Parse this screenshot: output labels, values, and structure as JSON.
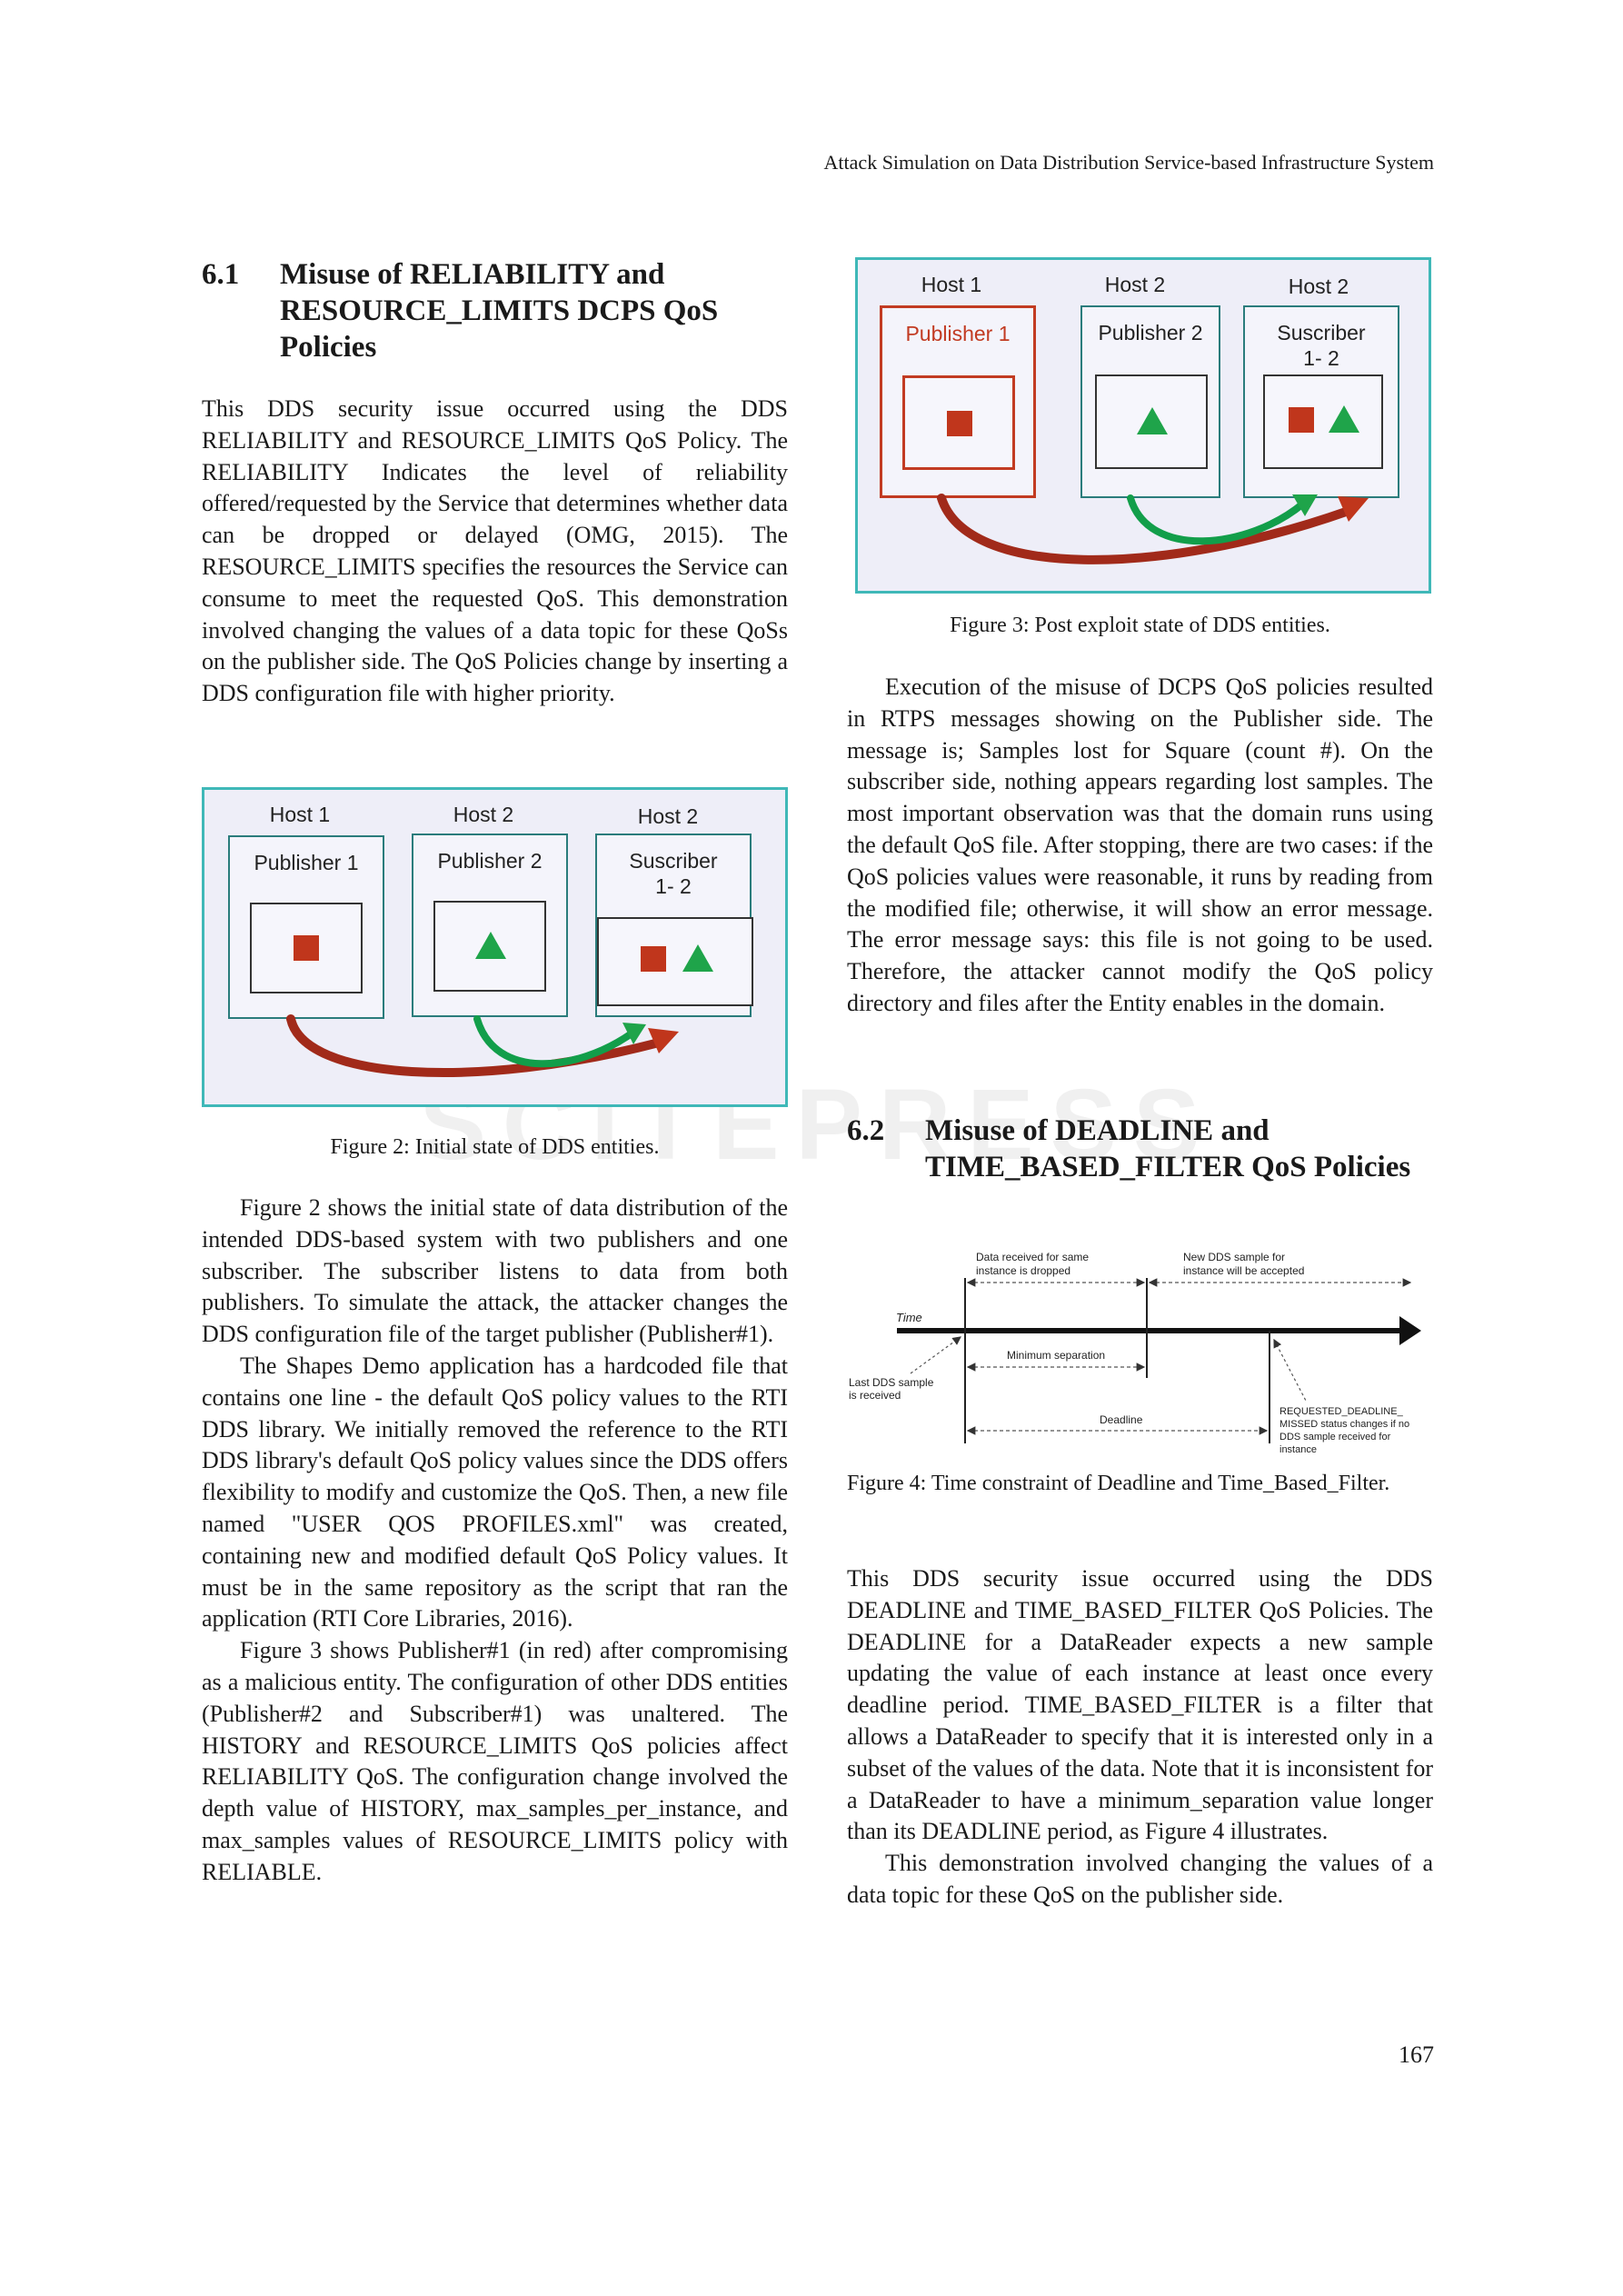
{
  "running_head": "Attack Simulation on Data Distribution Service-based Infrastructure System",
  "page_number": "167",
  "watermark": "SCITEPRESS SCIENCE AND TECHNOLOGY PUBLICATIONS",
  "left": {
    "section_6_1": {
      "number": "6.1",
      "title": "Misuse of RELIABILITY and RESOURCE_LIMITS DCPS QoS Policies"
    },
    "para1": "This DDS security issue occurred using the DDS RELIABILITY and RESOURCE_LIMITS QoS Policy. The RELIABILITY Indicates the level of reliability offered/requested by the Service that determines whether data can be dropped or delayed (OMG, 2015). The RESOURCE_LIMITS specifies the resources the Service can consume to meet the requested QoS. This demonstration involved changing the values of a data topic for these QoSs on the publisher side. The QoS Policies change by inserting a DDS configuration file with higher priority.",
    "fig2": {
      "host1": "Host 1",
      "host2": "Host 2",
      "host3": "Host 2",
      "pub1": "Publisher 1",
      "pub2": "Publisher 2",
      "sub_line1": "Suscriber",
      "sub_line2": "1- 2",
      "caption": "Figure 2: Initial state of DDS entities."
    },
    "para2": "Figure 2 shows the initial state of data distribution of the intended DDS-based system with two publishers and one subscriber. The subscriber listens to data from both publishers. To simulate the attack, the attacker changes the DDS configuration file of the target publisher (Publisher#1).",
    "para3": "The Shapes Demo application has a hardcoded file that contains one line - the default QoS policy values to the RTI DDS library. We initially removed the reference to the RTI DDS library's default QoS policy values since the DDS offers flexibility to modify and customize the QoS. Then, a new file named \"USER QOS PROFILES.xml\" was created, containing new and modified default QoS Policy values. It must be in the same repository as the script that ran the application (RTI Core Libraries, 2016).",
    "para4": "Figure 3 shows Publisher#1 (in red) after compromising as a malicious entity. The configuration of other DDS entities (Publisher#2 and Subscriber#1) was unaltered. The HISTORY and RESOURCE_LIMITS QoS policies affect RELIABILITY QoS. The configuration change involved the depth value of HISTORY, max_samples_per_instance, and max_samples values of RESOURCE_LIMITS policy with RELIABLE."
  },
  "right": {
    "fig3": {
      "host1": "Host 1",
      "host2": "Host 2",
      "host3": "Host 2",
      "pub1": "Publisher 1",
      "pub2": "Publisher 2",
      "sub_line1": "Suscriber",
      "sub_line2": "1- 2",
      "caption": "Figure 3: Post exploit state of DDS entities."
    },
    "para1": "Execution of the misuse of DCPS QoS policies resulted in RTPS messages showing on the Publisher side. The message is; Samples lost for Square (count #). On the subscriber side, nothing appears regarding lost samples. The most important observation was that the domain runs using the default QoS file. After stopping, there are two cases: if the QoS policies values were reasonable, it runs by reading from the modified file; otherwise, it will show an error message. The error message says: this file is not going to be used. Therefore, the attacker cannot modify the QoS policy directory and files after the Entity enables in the domain.",
    "section_6_2": {
      "number": "6.2",
      "title": "Misuse of DEADLINE and TIME_BASED_FILTER QoS Policies"
    },
    "fig4": {
      "time": "Time",
      "dropped_l1": "Data received for same",
      "dropped_l2": "instance is dropped",
      "accepted_l1": "New DDS sample for",
      "accepted_l2": "instance will be accepted",
      "min_sep": "Minimum separation",
      "last_l1": "Last DDS sample",
      "last_l2": "is received",
      "deadline": "Deadline",
      "missed_l1": "REQUESTED_DEADLINE_",
      "missed_l2": "MISSED status changes if no",
      "missed_l3": "DDS sample received for",
      "missed_l4": "instance",
      "caption": "Figure 4: Time constraint of Deadline and Time_Based_Filter."
    },
    "para2": "This DDS security issue occurred using the DDS DEADLINE and TIME_BASED_FILTER QoS Policies. The DEADLINE for a DataReader expects a new sample updating the value of each instance at least once every deadline period. TIME_BASED_FILTER is a filter that allows a DataReader to specify that it is interested only in a subset of the values of the data. Note that it is inconsistent for a DataReader to have a minimum_separation value longer than its DEADLINE period, as Figure 4 illustrates.",
    "para3": "This demonstration involved changing the values of a data topic for these QoS on the publisher side."
  },
  "colors": {
    "figure_border": "#3fb8b8",
    "figure_bg": "#eeeef8",
    "compromised_red": "#c23b22",
    "triangle_green": "#1fa44a",
    "square_red": "#c0361c"
  }
}
